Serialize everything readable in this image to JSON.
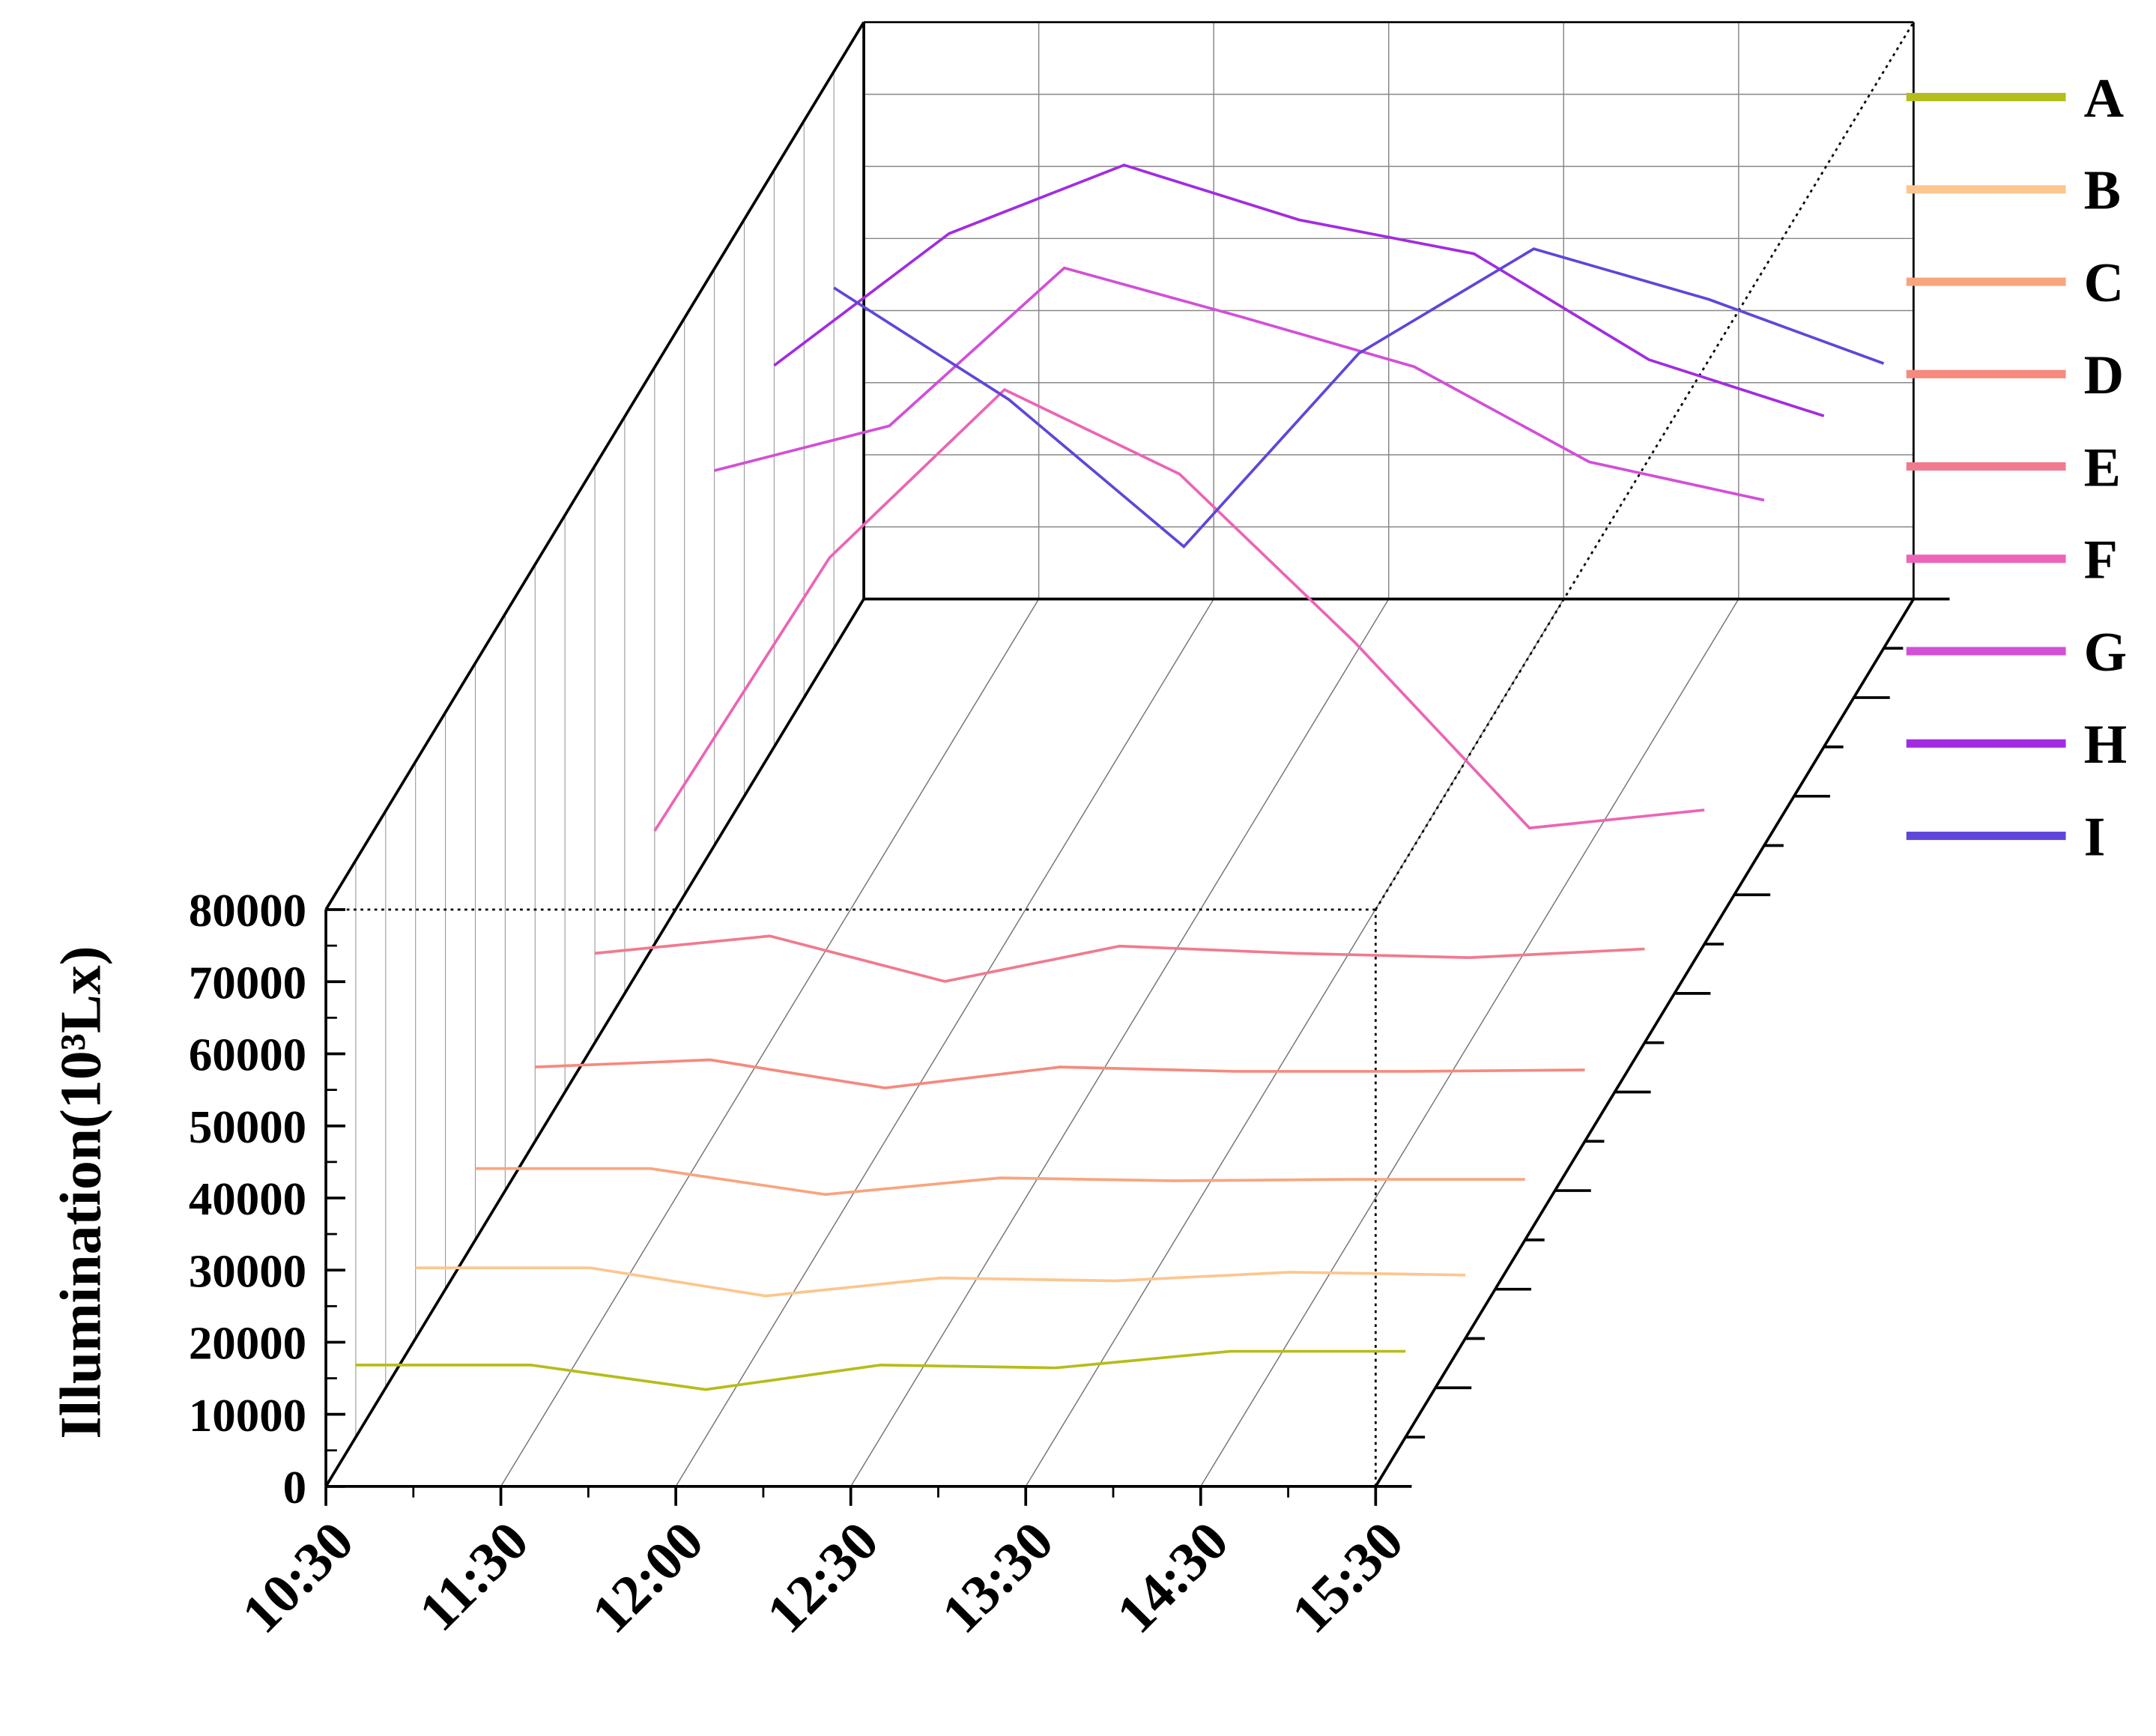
{
  "chart_data": {
    "type": "line3d",
    "y_label": "Illumination(10³Lx)",
    "categories": [
      "10:30",
      "11:30",
      "12:00",
      "12:30",
      "13:30",
      "14:30",
      "15:30"
    ],
    "ylim": [
      0,
      80000
    ],
    "yticks": [
      0,
      10000,
      20000,
      30000,
      40000,
      50000,
      60000,
      70000,
      80000
    ],
    "grid": true,
    "legend": "right",
    "series": [
      {
        "name": "A",
        "color": "#b5bd1a",
        "values": [
          10000,
          10000,
          6600,
          10000,
          9600,
          11900,
          11900
        ]
      },
      {
        "name": "B",
        "color": "#fcc68f",
        "values": [
          9800,
          9800,
          5900,
          8400,
          8000,
          9200,
          8800
        ]
      },
      {
        "name": "C",
        "color": "#f8a57e",
        "values": [
          9900,
          9900,
          6300,
          8600,
          8200,
          8400,
          8400
        ]
      },
      {
        "name": "D",
        "color": "#f58a7e",
        "values": [
          10300,
          11300,
          7400,
          10300,
          9700,
          9700,
          9900
        ]
      },
      {
        "name": "E",
        "color": "#f17a8f",
        "values": [
          12400,
          14800,
          8500,
          13400,
          12400,
          11800,
          13000
        ]
      },
      {
        "name": "F",
        "color": "#ec64b5",
        "values": [
          15700,
          53600,
          76900,
          65200,
          41900,
          16100,
          18600
        ]
      },
      {
        "name": "G",
        "color": "#d24fd8",
        "values": [
          52000,
          58200,
          80100,
          73400,
          66400,
          53200,
          47900
        ]
      },
      {
        "name": "H",
        "color": "#a22ce0",
        "values": [
          52900,
          71200,
          80700,
          73100,
          68400,
          53700,
          45900
        ]
      },
      {
        "name": "I",
        "color": "#6046d8",
        "values": [
          50000,
          34500,
          14100,
          40900,
          55400,
          48400,
          39500
        ]
      }
    ]
  }
}
